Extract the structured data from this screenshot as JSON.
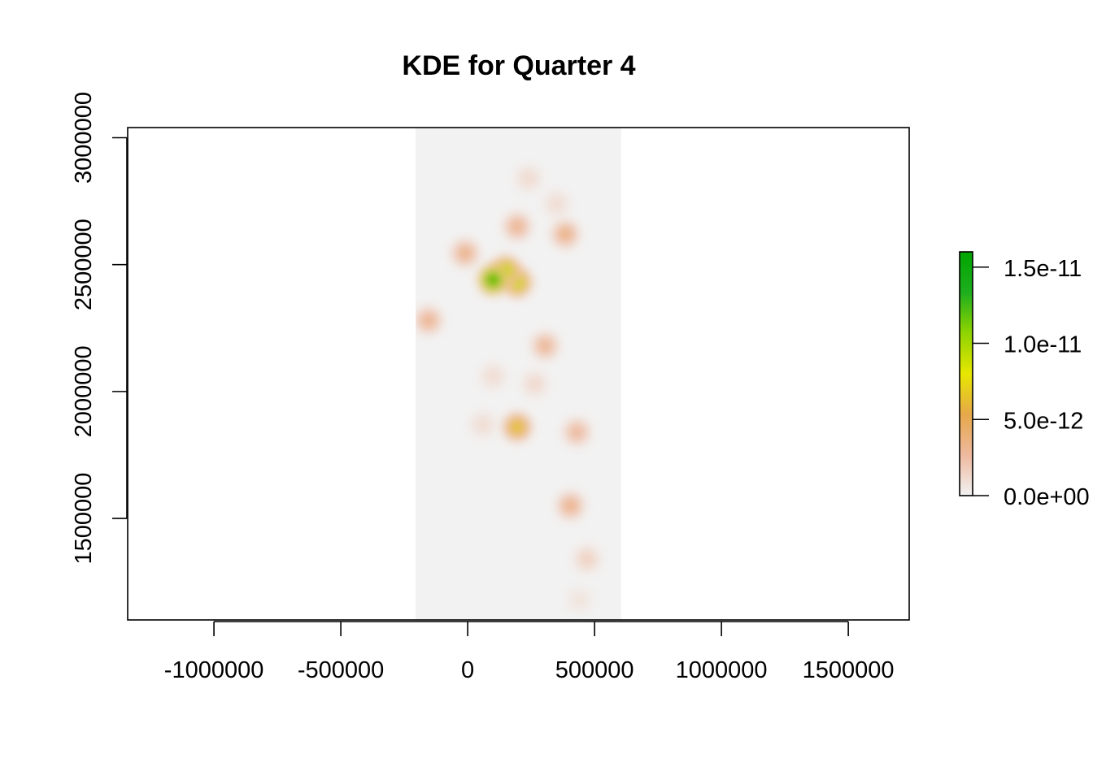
{
  "chart_data": {
    "type": "heatmap",
    "title": "KDE for Quarter 4",
    "xlabel": "",
    "ylabel": "",
    "xlim": [
      -1340000,
      1740000
    ],
    "ylim": [
      1100000,
      3040000
    ],
    "x_ticks": [
      -1000000,
      -500000,
      0,
      500000,
      1000000,
      1500000
    ],
    "x_tick_labels": [
      "-1000000",
      "-500000",
      "0",
      "500000",
      "1000000",
      "1500000"
    ],
    "y_ticks": [
      1500000,
      2000000,
      2500000,
      3000000
    ],
    "y_tick_labels": [
      "1500000",
      "2000000",
      "2500000",
      "3000000"
    ],
    "raster_extent": {
      "x": [
        -205000,
        605000
      ],
      "y": [
        1100000,
        3040000
      ]
    },
    "background_value": 0,
    "value_range": [
      0,
      1.6e-11
    ],
    "colorbar": {
      "ticks": [
        0,
        5e-12,
        1e-11,
        1.5e-11
      ],
      "tick_labels": [
        "0.0e+00",
        "5.0e-12",
        "1.0e-11",
        "1.5e-11"
      ],
      "colors": [
        "#f2f2f2",
        "#eeb99f",
        "#e6a84a",
        "#e7e700",
        "#8fd400",
        "#1eae1e",
        "#00a600"
      ]
    },
    "hotspots": [
      {
        "x": 100000,
        "y": 2440000,
        "value": 1.6e-11
      },
      {
        "x": 150000,
        "y": 2475000,
        "value": 1.05e-11
      },
      {
        "x": 195000,
        "y": 2430000,
        "value": 1e-11
      },
      {
        "x": 195000,
        "y": 1860000,
        "value": 7.5e-12
      },
      {
        "x": -10000,
        "y": 2545000,
        "value": 3.8e-12
      },
      {
        "x": 195000,
        "y": 2650000,
        "value": 3.6e-12
      },
      {
        "x": 385000,
        "y": 2620000,
        "value": 4e-12
      },
      {
        "x": -155000,
        "y": 2280000,
        "value": 3.6e-12
      },
      {
        "x": 305000,
        "y": 2180000,
        "value": 3.4e-12
      },
      {
        "x": 430000,
        "y": 1840000,
        "value": 3.2e-12
      },
      {
        "x": 405000,
        "y": 1550000,
        "value": 3.8e-12
      },
      {
        "x": 470000,
        "y": 1340000,
        "value": 1.8e-12
      },
      {
        "x": 240000,
        "y": 2840000,
        "value": 1.3e-12
      },
      {
        "x": 350000,
        "y": 2740000,
        "value": 1.2e-12
      },
      {
        "x": 100000,
        "y": 2060000,
        "value": 1.2e-12
      },
      {
        "x": 265000,
        "y": 2030000,
        "value": 1.4e-12
      },
      {
        "x": 60000,
        "y": 1870000,
        "value": 1.2e-12
      },
      {
        "x": 440000,
        "y": 1180000,
        "value": 8e-13
      }
    ]
  }
}
